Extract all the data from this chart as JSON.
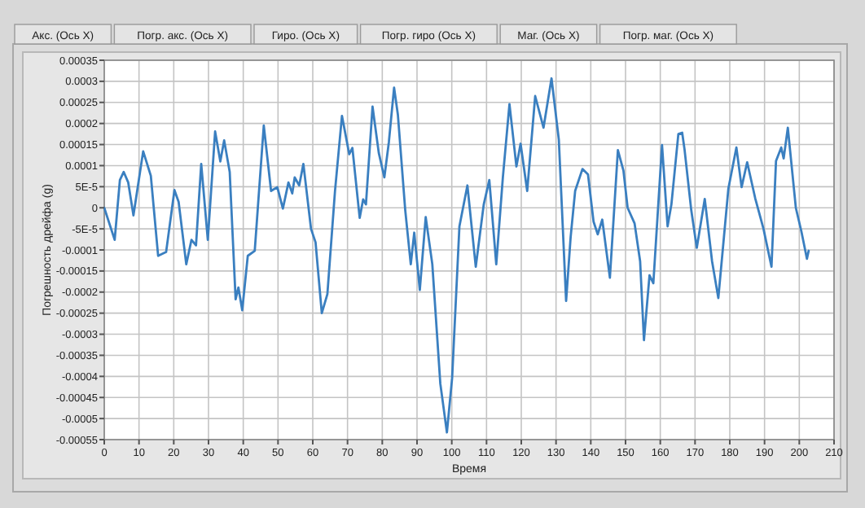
{
  "chart_data": {
    "type": "line",
    "xlabel": "Время",
    "ylabel": "Погрешность дрейфа (g)",
    "annotations": [
      "Акс. (Ось X)",
      "Погр. акс. (Ось X)",
      "Гиро. (Ось X)",
      "Погр. гиро (Ось X)",
      "Маг. (Ось X)",
      "Погр. маг. (Ось X)"
    ],
    "xlim": [
      0,
      210
    ],
    "xticks": [
      0,
      10,
      20,
      30,
      40,
      50,
      60,
      70,
      80,
      90,
      100,
      110,
      120,
      130,
      140,
      150,
      160,
      170,
      180,
      190,
      200,
      210
    ],
    "ylim": [
      -0.00055,
      0.00035
    ],
    "yticks": [
      0.00035,
      0.0003,
      0.00025,
      0.0002,
      0.00015,
      0.0001,
      {
        "value": 5e-05,
        "label": "5E-5"
      },
      0,
      {
        "value": -5e-05,
        "label": "-5E-5"
      },
      -0.0001,
      -0.00015,
      -0.0002,
      -0.00025,
      -0.0003,
      -0.00035,
      -0.0004,
      -0.00045,
      -0.0005,
      -0.00055
    ],
    "grid": true,
    "marker": "none",
    "line_style": "solid",
    "series": [
      {
        "color": "#3a7fc0",
        "x": [
          0,
          3,
          4.5,
          5.6,
          6.9,
          8.4,
          11.2,
          13.4,
          15.5,
          17.8,
          20.2,
          21.4,
          23.6,
          25.1,
          26.4,
          27.9,
          29.8,
          31.9,
          33.4,
          34.5,
          36.1,
          37.8,
          38.6,
          39.7,
          41.3,
          43.3,
          45.9,
          48,
          49.8,
          51.4,
          53,
          54.1,
          54.8,
          56.1,
          57.3,
          59.5,
          60.8,
          62.6,
          64.2,
          66.4,
          68.4,
          70.5,
          71.4,
          73.5,
          74.5,
          75.3,
          77.2,
          79,
          80.6,
          81.9,
          83.4,
          84.5,
          86.6,
          88.2,
          89.2,
          90.8,
          92.5,
          94.4,
          96.7,
          98.6,
          100.1,
          102.2,
          104.5,
          106.9,
          109.2,
          110.8,
          112.8,
          114.7,
          116.6,
          118.6,
          119.8,
          121.7,
          124,
          126.4,
          128.7,
          130.8,
          132.9,
          134.2,
          135.5,
          137.6,
          139.2,
          140.8,
          142,
          143.3,
          145.5,
          147.8,
          149.4,
          150.6,
          152.6,
          154.2,
          155.3,
          156.9,
          158,
          160.5,
          162.1,
          163.2,
          165.2,
          166.3,
          167,
          168.9,
          170.5,
          172.8,
          174.9,
          176.7,
          179.6,
          181.9,
          183.4,
          185,
          187.3,
          189.7,
          192,
          193.3,
          194.8,
          195.5,
          196.7,
          199,
          200.6,
          202.2,
          202.7
        ],
        "values": [
          0,
          -7.6e-05,
          6.6e-05,
          8.5e-05,
          6e-05,
          -1.8e-05,
          0.000134,
          7.6e-05,
          -0.000114,
          -0.000105,
          4.2e-05,
          1.4e-05,
          -0.000134,
          -7.6e-05,
          -8.9e-05,
          0.000104,
          -7.6e-05,
          0.000181,
          0.00011,
          0.00016,
          8.5e-05,
          -0.000217,
          -0.000189,
          -0.000243,
          -0.000114,
          -0.000102,
          0.000195,
          4e-05,
          4.9e-05,
          -2e-06,
          6e-05,
          3.4e-05,
          7.2e-05,
          5.3e-05,
          0.000104,
          -5e-05,
          -8.2e-05,
          -0.00025,
          -0.000205,
          4e-05,
          0.000218,
          0.000127,
          0.000142,
          -2.4e-05,
          2e-05,
          8e-06,
          0.00024,
          0.00013,
          7.2e-05,
          0.000156,
          0.000285,
          0.00022,
          -5e-06,
          -0.000134,
          -5.9e-05,
          -0.000195,
          -2.2e-05,
          -0.000134,
          -0.000417,
          -0.000533,
          -0.000404,
          -4.4e-05,
          5.3e-05,
          -0.00014,
          8e-06,
          6.6e-05,
          -0.000134,
          7.2e-05,
          0.000246,
          9.8e-05,
          0.000152,
          4e-05,
          0.000265,
          0.00019,
          0.000307,
          0.000162,
          -0.000221,
          -7e-05,
          4e-05,
          9.2e-05,
          7.9e-05,
          -3.3e-05,
          -6.3e-05,
          -2.8e-05,
          -0.000166,
          0.000137,
          8.8e-05,
          0,
          -3.7e-05,
          -0.000127,
          -0.000314,
          -0.00016,
          -0.000179,
          0.000149,
          -4.4e-05,
          8e-06,
          0.000175,
          0.000178,
          0.000137,
          -5e-06,
          -9.5e-05,
          2.1e-05,
          -0.000127,
          -0.000214,
          4.6e-05,
          0.000143,
          4.9e-05,
          0.000108,
          2.3e-05,
          -5e-05,
          -0.00014,
          0.000111,
          0.000143,
          0.000117,
          0.00019,
          0,
          -5.6e-05,
          -0.000121,
          -0.000102
        ]
      }
    ]
  }
}
